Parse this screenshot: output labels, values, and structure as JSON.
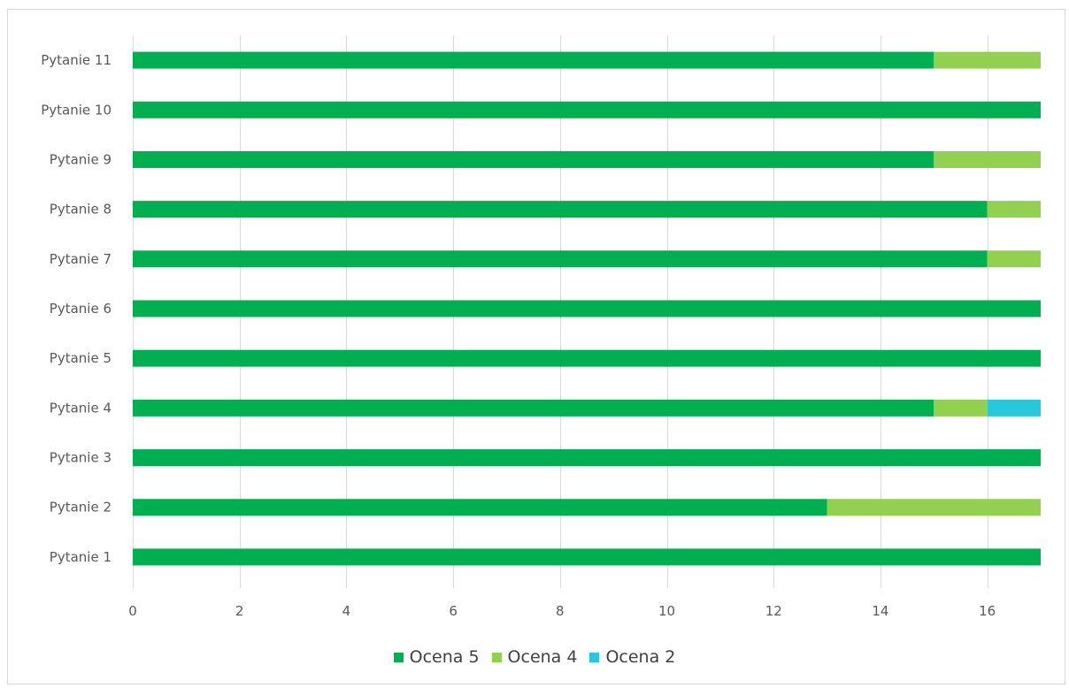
{
  "chart_data": {
    "type": "bar",
    "orientation": "horizontal",
    "stacked": true,
    "categories": [
      "Pytanie 1",
      "Pytanie 2",
      "Pytanie 3",
      "Pytanie 4",
      "Pytanie 5",
      "Pytanie 6",
      "Pytanie 7",
      "Pytanie 8",
      "Pytanie 9",
      "Pytanie 10",
      "Pytanie 11"
    ],
    "series": [
      {
        "name": "Ocena 5",
        "color": "#00b050",
        "values": [
          17,
          13,
          17,
          15,
          17,
          17,
          16,
          16,
          15,
          17,
          15
        ]
      },
      {
        "name": "Ocena 4",
        "color": "#92d050",
        "values": [
          0,
          4,
          0,
          1,
          0,
          0,
          1,
          1,
          2,
          0,
          2
        ]
      },
      {
        "name": "Ocena 2",
        "color": "#28c8dc",
        "values": [
          0,
          0,
          0,
          1,
          0,
          0,
          0,
          0,
          0,
          0,
          0
        ]
      }
    ],
    "xticks": [
      0,
      2,
      4,
      6,
      8,
      10,
      12,
      14,
      16
    ],
    "xlim": [
      0,
      17
    ],
    "grid": true,
    "legend_position": "bottom"
  }
}
